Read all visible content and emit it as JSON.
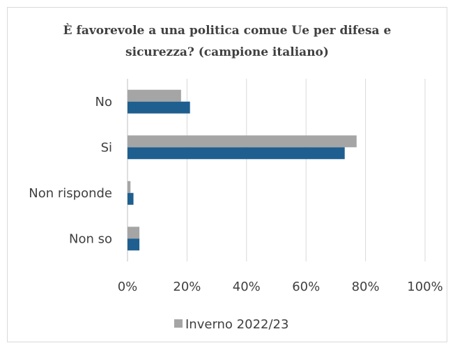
{
  "chart_data": {
    "type": "bar",
    "orientation": "horizontal",
    "title_lines": [
      "È favorevole a una politica comue Ue per difesa e",
      "sicurezza? (campione italiano)"
    ],
    "categories": [
      "No",
      "Si",
      "Non risponde",
      "Non so"
    ],
    "series": [
      {
        "name": "Inverno 2022/23",
        "values": [
          18,
          77,
          1,
          4
        ],
        "color": "#a5a5a5"
      },
      {
        "name": "",
        "values": [
          21,
          73,
          2,
          4
        ],
        "color": "#1f5f8f"
      }
    ],
    "xlim": [
      0,
      100
    ],
    "x_ticks": [
      "0%",
      "20%",
      "40%",
      "60%",
      "80%",
      "100%"
    ],
    "grid": true,
    "legend": "bottom"
  }
}
